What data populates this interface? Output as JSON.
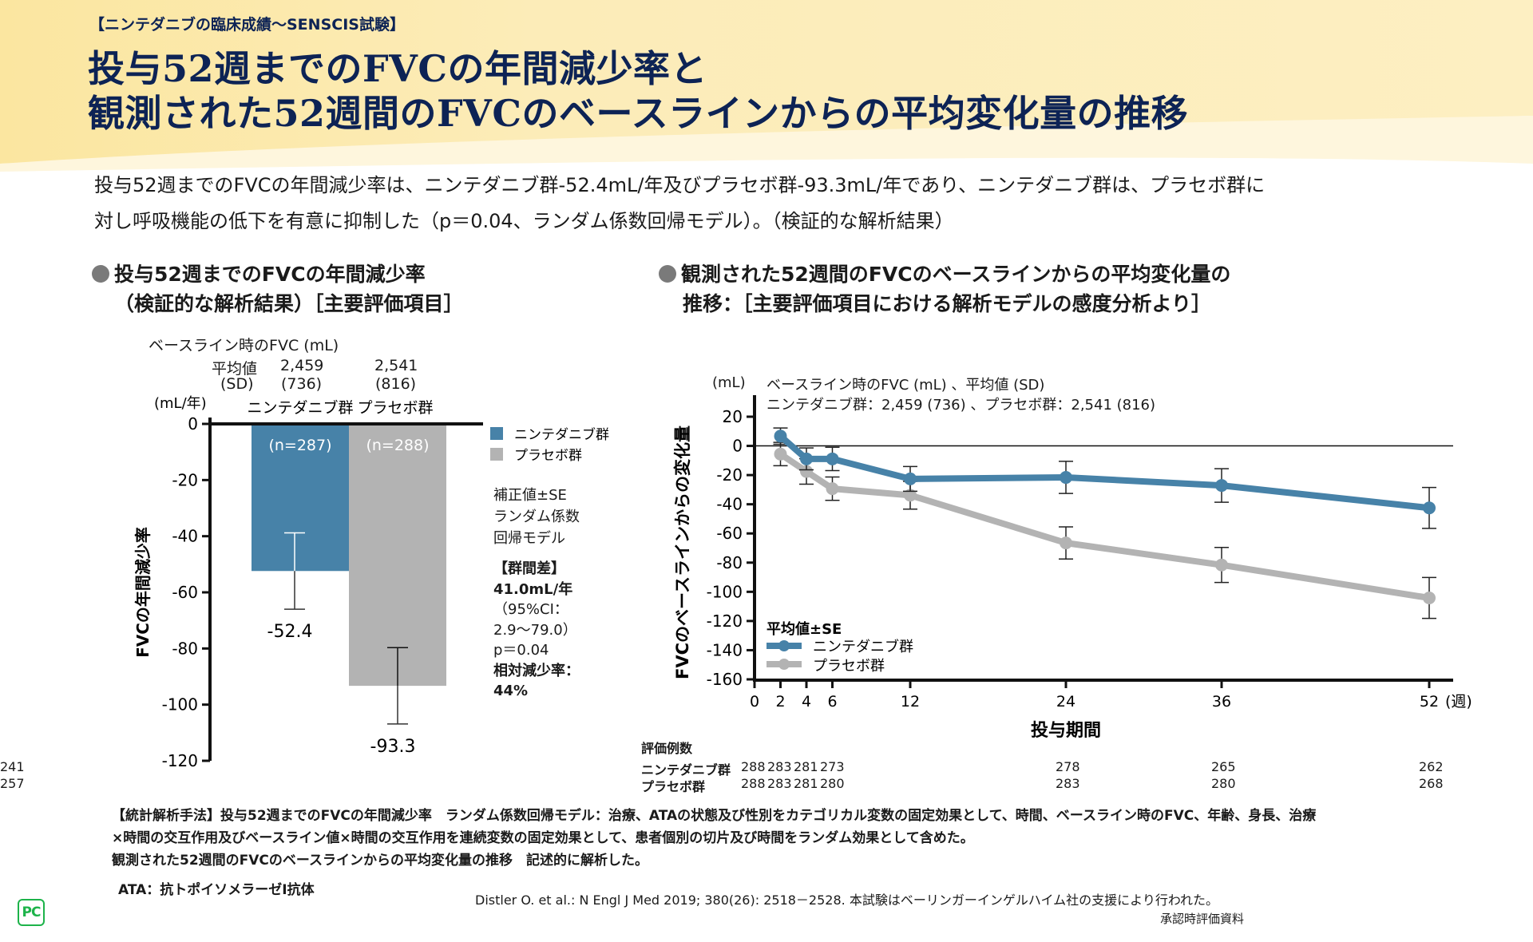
{
  "header": {
    "kicker": "【ニンテダニブの臨床成績～SENSCIS試験】",
    "title_line1": "投与52週までのFVCの年間減少率と",
    "title_line2": "観測された52週間のFVCのベースラインからの平均変化量の推移"
  },
  "description": {
    "line1": "投与52週までのFVCの年間減少率は、ニンテダニブ群-52.4mL/年及びプラセボ群-93.3mL/年であり、ニンテダニブ群は、プラセボ群に",
    "line2": "対し呼吸機能の低下を有意に抑制した（p＝0.04、ランダム係数回帰モデル）。（検証的な解析結果）"
  },
  "colors": {
    "nintedanib": "#4782a8",
    "placebo": "#b3b3b3",
    "title": "#0d2355",
    "logo": "#1db34a"
  },
  "left_section": {
    "heading_line1": "投与52週までのFVCの年間減少率",
    "heading_line2": "（検証的な解析結果）［主要評価項目］",
    "baseline_caption": "ベースライン時のFVC (mL)",
    "mean_label": "平均値",
    "sd_label": "(SD)",
    "nint_mean": "2,459",
    "nint_sd": "(736)",
    "plac_mean": "2,541",
    "plac_sd": "(816)",
    "legend": {
      "nintedanib": "ニンテダニブ群",
      "placebo": "プラセボ群"
    },
    "model_note": [
      "補正値±SE",
      "ランダム係数",
      "回帰モデル"
    ],
    "diff_note": [
      "【群間差】",
      "41.0mL/年",
      "（95%CI：",
      "2.9～79.0）",
      "p＝0.04",
      "相対減少率：",
      "44%"
    ]
  },
  "right_section": {
    "heading_line1": "観測された52週間のFVCのベースラインからの平均変化量の",
    "heading_line2": "推移：［主要評価項目における解析モデルの感度分析より］",
    "baseline_caption1": "ベースライン時のFVC (mL) 、平均値 (SD)",
    "baseline_caption2": "ニンテダニブ群：2,459 (736) 、プラセボ群：2,541 (816)",
    "legend_title": "平均値±SE",
    "legend": {
      "nintedanib": "ニンテダニブ群",
      "placebo": "プラセボ群"
    },
    "n_table": {
      "title": "評価例数",
      "rows": [
        {
          "label": "ニンテダニブ群",
          "values": [
            "288",
            "283",
            "281",
            "273",
            "278",
            "265",
            "262",
            "241"
          ]
        },
        {
          "label": "プラセボ群",
          "values": [
            "288",
            "283",
            "281",
            "280",
            "283",
            "280",
            "268",
            "257"
          ]
        }
      ]
    }
  },
  "chart_data": [
    {
      "type": "bar",
      "title": "投与52週までのFVCの年間減少率",
      "ylabel": "FVCの年間減少率",
      "yunit": "(mL/年)",
      "ylim": [
        -120,
        0
      ],
      "yticks": [
        0,
        -20,
        -40,
        -60,
        -80,
        -100,
        -120
      ],
      "categories": [
        "ニンテダニブ群",
        "プラセボ群"
      ],
      "n_labels": [
        "(n=287)",
        "(n=288)"
      ],
      "values": [
        -52.4,
        -93.3
      ],
      "value_labels": [
        "-52.4",
        "-93.3"
      ],
      "se": [
        13.6,
        13.6
      ]
    },
    {
      "type": "line",
      "title": "観測された52週間のFVCのベースラインからの平均変化量の推移",
      "ylabel": "FVCのベースラインからの変化量",
      "yunit": "(mL)",
      "xlabel": "投与期間",
      "xunit": "(週)",
      "ylim": [
        -160,
        20
      ],
      "yticks": [
        20,
        0,
        -20,
        -40,
        -60,
        -80,
        -100,
        -120,
        -140,
        -160
      ],
      "xticks": [
        0,
        2,
        4,
        6,
        12,
        24,
        36,
        52
      ],
      "xlim": [
        0,
        52
      ],
      "series": [
        {
          "name": "ニンテダニブ群",
          "x": [
            2,
            4,
            6,
            12,
            24,
            36,
            52
          ],
          "y": [
            6.7,
            -8.9,
            -8.9,
            -22.6,
            -21.6,
            -27.1,
            -42.5
          ],
          "se": [
            5.6,
            7.5,
            8,
            8.5,
            11,
            11.5,
            14
          ]
        },
        {
          "name": "プラセボ群",
          "x": [
            2,
            4,
            6,
            12,
            24,
            36,
            52
          ],
          "y": [
            -5.6,
            -17.5,
            -29.3,
            -33.8,
            -66.5,
            -81.6,
            -104.2
          ],
          "se": [
            8,
            8.7,
            8,
            9.5,
            11,
            12,
            14
          ]
        }
      ]
    }
  ],
  "footer": {
    "method_line1": "【統計解析手法】投与52週までのFVCの年間減少率　ランダム係数回帰モデル：治療、ATAの状態及び性別をカテゴリカル変数の固定効果として、時間、ベースライン時のFVC、年齢、身長、治療",
    "method_line2": "×時間の交互作用及びベースライン値×時間の交互作用を連続変数の固定効果として、患者個別の切片及び時間をランダム効果として含めた。",
    "method_line3": "観測された52週間のFVCのベースラインからの平均変化量の推移　記述的に解析した。",
    "ata_note": "ATA：抗トポイソメラーゼⅠ抗体",
    "citation": "Distler O. et al.: N Engl J Med 2019; 380(26): 2518－2528. 本試験はベーリンガーインゲルハイム社の支援により行われた。",
    "source": "承認時評価資料",
    "logo_text": "PC"
  }
}
